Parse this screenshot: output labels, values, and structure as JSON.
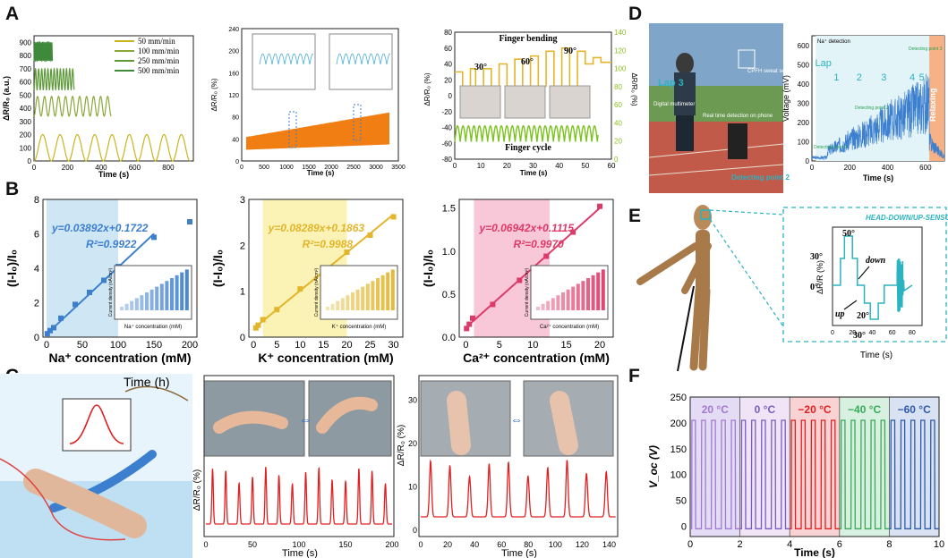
{
  "panel_labels": {
    "a": "A",
    "b": "B",
    "c": "C",
    "d": "D",
    "e": "E",
    "f": "F"
  },
  "colors": {
    "olive": "#c8b41e",
    "green1": "#8aa83a",
    "green2": "#5e9a3a",
    "green3": "#3e8a3a",
    "orange": "#f07e12",
    "blue": "#3d7fcf",
    "yellow": "#e3b52a",
    "yellowfill": "#fbf3b5",
    "pink": "#dd3a6a",
    "pinkfill": "#f8c8d8",
    "lightblue": "#cfe6f4",
    "red": "#e02020",
    "teal": "#2ab3c0",
    "lime": "#8ac21e",
    "purple": "#7a5cc0",
    "violet": "#a07ad0",
    "green4": "#3aaa5a",
    "navy": "#2e5aa8"
  },
  "a1": {
    "ylabel": "ΔR/R₀ (a.u.)",
    "xlabel": "Time (s)",
    "yticks": [
      "0",
      "100",
      "200",
      "300",
      "400",
      "500",
      "600",
      "700",
      "800",
      "900"
    ],
    "xticks": [
      "0",
      "200",
      "400",
      "600",
      "800"
    ],
    "legend": [
      "50 mm/min",
      "100 mm/min",
      "250 mm/min",
      "500 mm/min"
    ]
  },
  "a2": {
    "ylabel": "ΔR/R₀ (%)",
    "xlabel": "Time (s)",
    "yticks": [
      "0",
      "20",
      "40",
      "60",
      "80",
      "100",
      "120",
      "140",
      "160",
      "180",
      "200",
      "220",
      "240"
    ],
    "xticks": [
      "0",
      "500",
      "1000",
      "1500",
      "2000",
      "2500",
      "3000",
      "3500"
    ]
  },
  "a3": {
    "ylabel_left": "ΔR/R₀ (%)",
    "ylabel_right": "ΔR/R₀ (%)",
    "xlabel": "Time (s)",
    "yticks_left": [
      "-80",
      "-60",
      "-40",
      "-20",
      "0",
      "20",
      "40",
      "60",
      "80"
    ],
    "yticks_right": [
      "0",
      "20",
      "40",
      "60",
      "80",
      "100",
      "120",
      "140"
    ],
    "xticks": [
      "0",
      "10",
      "20",
      "30",
      "40",
      "50",
      "60"
    ],
    "title_top": "Finger bending",
    "title_bottom": "Finger cycle",
    "angles": [
      "30°",
      "60°",
      "90°"
    ]
  },
  "b": [
    {
      "ion": "Na",
      "xlabel": "Na⁺ concentration (mM)",
      "ylabel": "(I-I₀)/I₀",
      "equation": "y=0.03892x+0.1722",
      "r2": "R²=0.9922",
      "inset_y": "Current density (nA/cm²)",
      "inset_x": "Na⁺ concentration (mM)",
      "xticks": [
        "0",
        "50",
        "100",
        "150",
        "200"
      ],
      "yticks": [
        "0",
        "2",
        "4",
        "6",
        "8"
      ]
    },
    {
      "ion": "K",
      "xlabel": "K⁺ concentration (mM)",
      "ylabel": "(I-I₀)/I₀",
      "equation": "y=0.08289x+0.1863",
      "r2": "R²=0.9988",
      "inset_y": "Current density (nA/cm²)",
      "inset_x": "K⁺ concentration (mM)",
      "xticks": [
        "0",
        "5",
        "10",
        "15",
        "20",
        "25",
        "30"
      ],
      "yticks": [
        "0",
        "1",
        "2",
        "3"
      ]
    },
    {
      "ion": "Ca",
      "xlabel": "Ca²⁺ concentration (mM)",
      "ylabel": "(I-I₀)/I₀",
      "equation": "y=0.06942x+0.1115",
      "r2": "R²=0.9970",
      "inset_y": "Current density (nA/cm²)",
      "inset_x": "Ca²⁺ concentration (mM)",
      "xticks": [
        "0",
        "5",
        "10",
        "15",
        "20"
      ],
      "yticks": [
        "0.0",
        "0.5",
        "1.0",
        "1.5"
      ]
    }
  ],
  "c": {
    "time_label": "Time (h)",
    "c2": {
      "ylabel": "ΔR/R₀ (%)",
      "xlabel": "Time (s)",
      "xticks": [
        "0",
        "50",
        "100",
        "150",
        "200"
      ]
    },
    "c3": {
      "ylabel": "ΔR/R₀ (%)",
      "xlabel": "Time (s)",
      "xticks": [
        "0",
        "20",
        "40",
        "60",
        "80",
        "100",
        "120",
        "140"
      ],
      "yticks": [
        "0",
        "10",
        "20",
        "30"
      ]
    }
  },
  "d": {
    "lap": "Lap 3",
    "photo_labels": [
      "CPFH sweat sensor on arm",
      "Digital multimeter",
      "Real time detection on phone",
      "Detecting point 2"
    ],
    "ylabel": "Voltage (mV)",
    "xlabel": "Time (s)",
    "legend": "Na⁺ detection",
    "yticks": [
      "0",
      "100",
      "200",
      "300",
      "400",
      "500",
      "600"
    ],
    "xticks": [
      "0",
      "200",
      "400",
      "600"
    ],
    "laps": [
      "Lap",
      "1",
      "2",
      "3",
      "4",
      "5"
    ],
    "relaxing": "Relaxing",
    "points": [
      "Detecting point 1",
      "Detecting point 2",
      "Detecting point 3"
    ]
  },
  "e": {
    "title": "HEAD-DOWN/UP-SENSOR",
    "ylabel": "ΔR/R (%)",
    "xlabel": "Time (s)",
    "xticks": [
      "0",
      "20",
      "40",
      "60",
      "80"
    ],
    "angles": [
      "50°",
      "30°",
      "0°",
      "20°",
      "30°"
    ],
    "down": "down",
    "up": "up"
  },
  "f": {
    "ylabel": "V_oc (V)",
    "xlabel": "Time (s)",
    "xticks": [
      "0",
      "2",
      "4",
      "6",
      "8",
      "10"
    ],
    "yticks": [
      "0",
      "50",
      "100",
      "150",
      "200",
      "250"
    ],
    "temps": [
      "20 °C",
      "0 °C",
      "−20 °C",
      "−40 °C",
      "−60 °C"
    ]
  },
  "chart_data": [
    {
      "id": "B-Na",
      "type": "scatter",
      "title": "",
      "xlabel": "Na⁺ concentration (mM)",
      "ylabel": "(I-I₀)/I₀",
      "x": [
        1,
        5,
        10,
        20,
        40,
        60,
        80,
        100,
        150,
        200
      ],
      "y": [
        0.2,
        0.38,
        0.55,
        1.1,
        1.9,
        2.6,
        3.3,
        4.1,
        5.8,
        6.7
      ],
      "fit": {
        "slope": 0.03892,
        "intercept": 0.1722,
        "r2": 0.9922
      },
      "xlim": [
        -5,
        210
      ],
      "ylim": [
        0,
        8
      ]
    },
    {
      "id": "B-K",
      "type": "scatter",
      "title": "",
      "xlabel": "K⁺ concentration (mM)",
      "ylabel": "(I-I₀)/I₀",
      "x": [
        0.5,
        1,
        2,
        5,
        10,
        15,
        20,
        25,
        30
      ],
      "y": [
        0.2,
        0.26,
        0.38,
        0.6,
        1.05,
        1.42,
        1.85,
        2.22,
        2.62
      ],
      "fit": {
        "slope": 0.08289,
        "intercept": 0.1863,
        "r2": 0.9988
      },
      "xlim": [
        -1,
        32
      ],
      "ylim": [
        0,
        3
      ]
    },
    {
      "id": "B-Ca",
      "type": "scatter",
      "title": "",
      "xlabel": "Ca²⁺ concentration (mM)",
      "ylabel": "(I-I₀)/I₀",
      "x": [
        0.1,
        0.5,
        1,
        4,
        8,
        12,
        16,
        20
      ],
      "y": [
        0.1,
        0.15,
        0.22,
        0.38,
        0.66,
        0.94,
        1.22,
        1.52
      ],
      "fit": {
        "slope": 0.06942,
        "intercept": 0.1115,
        "r2": 0.997
      },
      "xlim": [
        -1,
        22
      ],
      "ylim": [
        0,
        1.6
      ]
    },
    {
      "id": "F",
      "type": "line",
      "title": "",
      "xlabel": "Time (s)",
      "ylabel": "V_oc (V)",
      "xlim": [
        0,
        10
      ],
      "ylim": [
        -20,
        250
      ],
      "series": [
        {
          "name": "20 °C",
          "xrange": [
            0,
            2
          ],
          "peak": 205
        },
        {
          "name": "0 °C",
          "xrange": [
            2,
            4
          ],
          "peak": 205
        },
        {
          "name": "−20 °C",
          "xrange": [
            4,
            6
          ],
          "peak": 205
        },
        {
          "name": "−40 °C",
          "xrange": [
            6,
            8
          ],
          "peak": 205
        },
        {
          "name": "−60 °C",
          "xrange": [
            8,
            10
          ],
          "peak": 205
        }
      ]
    },
    {
      "id": "A1",
      "type": "line",
      "xlabel": "Time (s)",
      "ylabel": "ΔR/R₀ (a.u.)",
      "xlim": [
        0,
        950
      ],
      "ylim": [
        0,
        950
      ],
      "series": [
        {
          "name": "50 mm/min",
          "xmax": 930,
          "cycles": 9,
          "base": 0,
          "amp": 200
        },
        {
          "name": "100 mm/min",
          "xmax": 460,
          "cycles": 11,
          "base": 340,
          "amp": 150
        },
        {
          "name": "250 mm/min",
          "xmax": 240,
          "cycles": 13,
          "base": 540,
          "amp": 160
        },
        {
          "name": "500 mm/min",
          "xmax": 110,
          "cycles": 14,
          "base": 760,
          "amp": 140
        }
      ]
    },
    {
      "id": "D",
      "type": "line",
      "xlabel": "Time (s)",
      "ylabel": "Voltage (mV)",
      "xlim": [
        0,
        700
      ],
      "ylim": [
        0,
        650
      ],
      "series": [
        {
          "name": "Na⁺ detection"
        }
      ]
    }
  ]
}
